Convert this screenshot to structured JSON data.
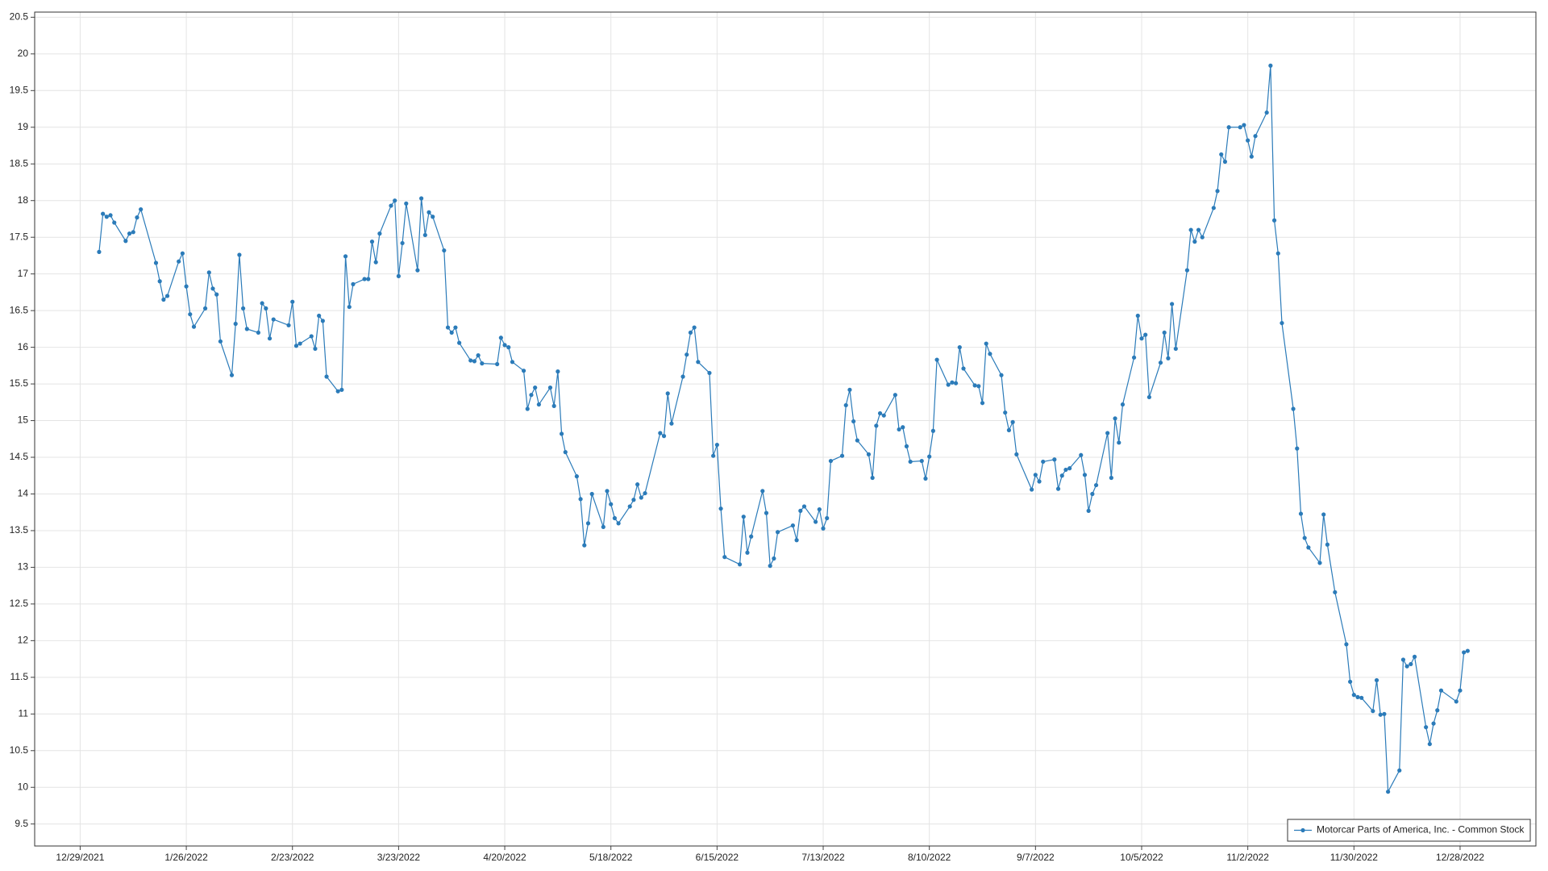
{
  "chart_data": {
    "type": "line",
    "x": [
      "1/3/2022",
      "1/4/2022",
      "1/5/2022",
      "1/6/2022",
      "1/7/2022",
      "1/10/2022",
      "1/11/2022",
      "1/12/2022",
      "1/13/2022",
      "1/14/2022",
      "1/18/2022",
      "1/19/2022",
      "1/20/2022",
      "1/21/2022",
      "1/24/2022",
      "1/25/2022",
      "1/26/2022",
      "1/27/2022",
      "1/28/2022",
      "1/31/2022",
      "2/1/2022",
      "2/2/2022",
      "2/3/2022",
      "2/4/2022",
      "2/7/2022",
      "2/8/2022",
      "2/9/2022",
      "2/10/2022",
      "2/11/2022",
      "2/14/2022",
      "2/15/2022",
      "2/16/2022",
      "2/17/2022",
      "2/18/2022",
      "2/22/2022",
      "2/23/2022",
      "2/24/2022",
      "2/25/2022",
      "2/28/2022",
      "3/1/2022",
      "3/2/2022",
      "3/3/2022",
      "3/4/2022",
      "3/7/2022",
      "3/8/2022",
      "3/9/2022",
      "3/10/2022",
      "3/11/2022",
      "3/14/2022",
      "3/15/2022",
      "3/16/2022",
      "3/17/2022",
      "3/18/2022",
      "3/21/2022",
      "3/22/2022",
      "3/23/2022",
      "3/24/2022",
      "3/25/2022",
      "3/28/2022",
      "3/29/2022",
      "3/30/2022",
      "3/31/2022",
      "4/1/2022",
      "4/4/2022",
      "4/5/2022",
      "4/6/2022",
      "4/7/2022",
      "4/8/2022",
      "4/11/2022",
      "4/12/2022",
      "4/13/2022",
      "4/14/2022",
      "4/18/2022",
      "4/19/2022",
      "4/20/2022",
      "4/21/2022",
      "4/22/2022",
      "4/25/2022",
      "4/26/2022",
      "4/27/2022",
      "4/28/2022",
      "4/29/2022",
      "5/2/2022",
      "5/3/2022",
      "5/4/2022",
      "5/5/2022",
      "5/6/2022",
      "5/9/2022",
      "5/10/2022",
      "5/11/2022",
      "5/12/2022",
      "5/13/2022",
      "5/16/2022",
      "5/17/2022",
      "5/18/2022",
      "5/19/2022",
      "5/20/2022",
      "5/23/2022",
      "5/24/2022",
      "5/25/2022",
      "5/26/2022",
      "5/27/2022",
      "5/31/2022",
      "6/1/2022",
      "6/2/2022",
      "6/3/2022",
      "6/6/2022",
      "6/7/2022",
      "6/8/2022",
      "6/9/2022",
      "6/10/2022",
      "6/13/2022",
      "6/14/2022",
      "6/15/2022",
      "6/16/2022",
      "6/17/2022",
      "6/21/2022",
      "6/22/2022",
      "6/23/2022",
      "6/24/2022",
      "6/27/2022",
      "6/28/2022",
      "6/29/2022",
      "6/30/2022",
      "7/1/2022",
      "7/5/2022",
      "7/6/2022",
      "7/7/2022",
      "7/8/2022",
      "7/11/2022",
      "7/12/2022",
      "7/13/2022",
      "7/14/2022",
      "7/15/2022",
      "7/18/2022",
      "7/19/2022",
      "7/20/2022",
      "7/21/2022",
      "7/22/2022",
      "7/25/2022",
      "7/26/2022",
      "7/27/2022",
      "7/28/2022",
      "7/29/2022",
      "8/1/2022",
      "8/2/2022",
      "8/3/2022",
      "8/4/2022",
      "8/5/2022",
      "8/8/2022",
      "8/9/2022",
      "8/10/2022",
      "8/11/2022",
      "8/12/2022",
      "8/15/2022",
      "8/16/2022",
      "8/17/2022",
      "8/18/2022",
      "8/19/2022",
      "8/22/2022",
      "8/23/2022",
      "8/24/2022",
      "8/25/2022",
      "8/26/2022",
      "8/29/2022",
      "8/30/2022",
      "8/31/2022",
      "9/1/2022",
      "9/2/2022",
      "9/6/2022",
      "9/7/2022",
      "9/8/2022",
      "9/9/2022",
      "9/12/2022",
      "9/13/2022",
      "9/14/2022",
      "9/15/2022",
      "9/16/2022",
      "9/19/2022",
      "9/20/2022",
      "9/21/2022",
      "9/22/2022",
      "9/23/2022",
      "9/26/2022",
      "9/27/2022",
      "9/28/2022",
      "9/29/2022",
      "9/30/2022",
      "10/3/2022",
      "10/4/2022",
      "10/5/2022",
      "10/6/2022",
      "10/7/2022",
      "10/10/2022",
      "10/11/2022",
      "10/12/2022",
      "10/13/2022",
      "10/14/2022",
      "10/17/2022",
      "10/18/2022",
      "10/19/2022",
      "10/20/2022",
      "10/21/2022",
      "10/24/2022",
      "10/25/2022",
      "10/26/2022",
      "10/27/2022",
      "10/28/2022",
      "10/31/2022",
      "11/1/2022",
      "11/2/2022",
      "11/3/2022",
      "11/4/2022",
      "11/7/2022",
      "11/8/2022",
      "11/9/2022",
      "11/10/2022",
      "11/11/2022",
      "11/14/2022",
      "11/15/2022",
      "11/16/2022",
      "11/17/2022",
      "11/18/2022",
      "11/21/2022",
      "11/22/2022",
      "11/23/2022",
      "11/25/2022",
      "11/28/2022",
      "11/29/2022",
      "11/30/2022",
      "12/1/2022",
      "12/2/2022",
      "12/5/2022",
      "12/6/2022",
      "12/7/2022",
      "12/8/2022",
      "12/9/2022",
      "12/12/2022",
      "12/13/2022",
      "12/14/2022",
      "12/15/2022",
      "12/16/2022",
      "12/19/2022",
      "12/20/2022",
      "12/21/2022",
      "12/22/2022",
      "12/23/2022",
      "12/27/2022",
      "12/28/2022",
      "12/29/2022",
      "12/30/2022"
    ],
    "series": [
      {
        "name": "Motorcar Parts of America, Inc. - Common Stock",
        "color": "#2b7bb9",
        "values": [
          17.3,
          17.82,
          17.78,
          17.8,
          17.7,
          17.45,
          17.55,
          17.57,
          17.77,
          17.88,
          17.15,
          16.9,
          16.65,
          16.7,
          17.17,
          17.28,
          16.83,
          16.45,
          16.28,
          16.53,
          17.02,
          16.8,
          16.72,
          16.08,
          15.62,
          16.32,
          17.26,
          16.53,
          16.25,
          16.2,
          16.6,
          16.53,
          16.12,
          16.38,
          16.3,
          16.62,
          16.02,
          16.05,
          16.15,
          15.98,
          16.43,
          16.36,
          15.6,
          15.4,
          15.42,
          17.24,
          16.55,
          16.86,
          16.93,
          16.93,
          17.44,
          17.16,
          17.55,
          17.93,
          18.0,
          16.97,
          17.42,
          17.96,
          17.05,
          18.03,
          17.53,
          17.84,
          17.78,
          17.32,
          16.27,
          16.2,
          16.27,
          16.06,
          15.82,
          15.81,
          15.89,
          15.78,
          15.77,
          16.13,
          16.03,
          16.0,
          15.8,
          15.68,
          15.16,
          15.35,
          15.45,
          15.22,
          15.45,
          15.2,
          15.67,
          14.82,
          14.57,
          14.24,
          13.93,
          13.3,
          13.6,
          14.0,
          13.55,
          14.04,
          13.86,
          13.67,
          13.6,
          13.83,
          13.92,
          14.13,
          13.95,
          14.01,
          14.83,
          14.79,
          15.37,
          14.96,
          15.6,
          15.9,
          16.2,
          16.27,
          15.8,
          15.65,
          14.52,
          14.67,
          13.8,
          13.14,
          13.04,
          13.69,
          13.2,
          13.42,
          14.04,
          13.74,
          13.02,
          13.12,
          13.48,
          13.57,
          13.37,
          13.77,
          13.83,
          13.62,
          13.79,
          13.53,
          13.67,
          14.45,
          14.52,
          15.21,
          15.42,
          14.99,
          14.73,
          14.54,
          14.22,
          14.93,
          15.1,
          15.07,
          15.35,
          14.88,
          14.91,
          14.65,
          14.44,
          14.45,
          14.21,
          14.51,
          14.86,
          15.83,
          15.49,
          15.52,
          15.51,
          16.0,
          15.71,
          15.48,
          15.47,
          15.24,
          16.05,
          15.91,
          15.62,
          15.11,
          14.87,
          14.98,
          14.54,
          14.06,
          14.26,
          14.17,
          14.44,
          14.47,
          14.07,
          14.25,
          14.33,
          14.35,
          14.53,
          14.26,
          13.77,
          14.0,
          14.12,
          14.83,
          14.22,
          15.03,
          14.7,
          15.22,
          15.86,
          16.43,
          16.12,
          16.17,
          15.32,
          15.79,
          16.2,
          15.85,
          16.59,
          15.98,
          17.05,
          17.6,
          17.44,
          17.6,
          17.5,
          17.9,
          18.13,
          18.63,
          18.53,
          19.0,
          19.0,
          19.03,
          18.82,
          18.6,
          18.88,
          19.2,
          19.84,
          17.73,
          17.28,
          16.33,
          15.16,
          14.62,
          13.73,
          13.4,
          13.27,
          13.06,
          13.72,
          13.31,
          12.66,
          11.95,
          11.44,
          11.26,
          11.23,
          11.22,
          11.04,
          11.46,
          10.99,
          11.0,
          9.94,
          10.23,
          11.74,
          11.65,
          11.68,
          11.78,
          10.82,
          10.59,
          10.87,
          11.05,
          11.32,
          11.17,
          11.32,
          11.84,
          11.86
        ]
      }
    ],
    "xlim": [
      "12/17/2021",
      "1/17/2023"
    ],
    "xticks": [
      "12/29/2021",
      "1/26/2022",
      "2/23/2022",
      "3/23/2022",
      "4/20/2022",
      "5/18/2022",
      "6/15/2022",
      "7/13/2022",
      "8/10/2022",
      "9/7/2022",
      "10/5/2022",
      "11/2/2022",
      "11/30/2022",
      "12/28/2022"
    ],
    "ylim": [
      9.2,
      20.57
    ],
    "yticks": [
      9.5,
      10,
      10.5,
      11,
      11.5,
      12,
      12.5,
      13,
      13.5,
      14,
      14.5,
      15,
      15.5,
      16,
      16.5,
      17,
      17.5,
      18,
      18.5,
      19,
      19.5,
      20,
      20.5
    ],
    "grid": true,
    "legend": "bottom-right"
  }
}
